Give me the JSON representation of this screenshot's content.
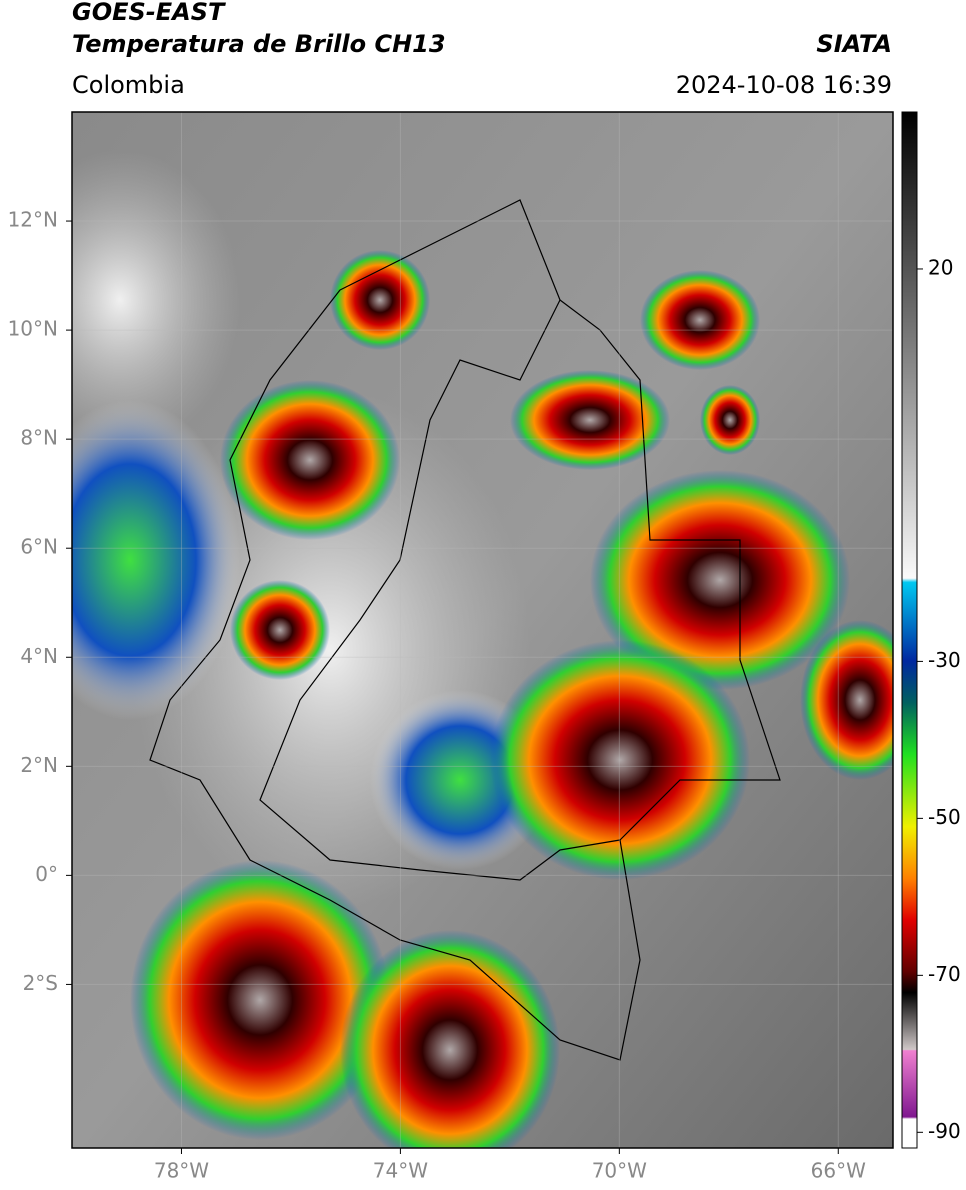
{
  "header": {
    "title": "GOES-EAST",
    "subtitle": "Temperatura de Brillo CH13",
    "source": "SIATA",
    "region": "Colombia",
    "datetime": "2024-10-08 16:39"
  },
  "map": {
    "xlim": [
      -80,
      -65
    ],
    "ylim": [
      -5,
      14
    ],
    "xticks": [
      {
        "value": -78,
        "label": "78°W"
      },
      {
        "value": -74,
        "label": "74°W"
      },
      {
        "value": -70,
        "label": "70°W"
      },
      {
        "value": -66,
        "label": "66°W"
      }
    ],
    "yticks": [
      {
        "value": 12,
        "label": "12°N"
      },
      {
        "value": 10,
        "label": "10°N"
      },
      {
        "value": 8,
        "label": "8°N"
      },
      {
        "value": 6,
        "label": "6°N"
      },
      {
        "value": 4,
        "label": "4°N"
      },
      {
        "value": 2,
        "label": "2°N"
      },
      {
        "value": 0,
        "label": "0°"
      },
      {
        "value": -2,
        "label": "2°S"
      }
    ],
    "grid": true
  },
  "colorbar": {
    "lim": [
      -92,
      40
    ],
    "ticks": [
      20,
      -30,
      -50,
      -70,
      -90
    ]
  }
}
